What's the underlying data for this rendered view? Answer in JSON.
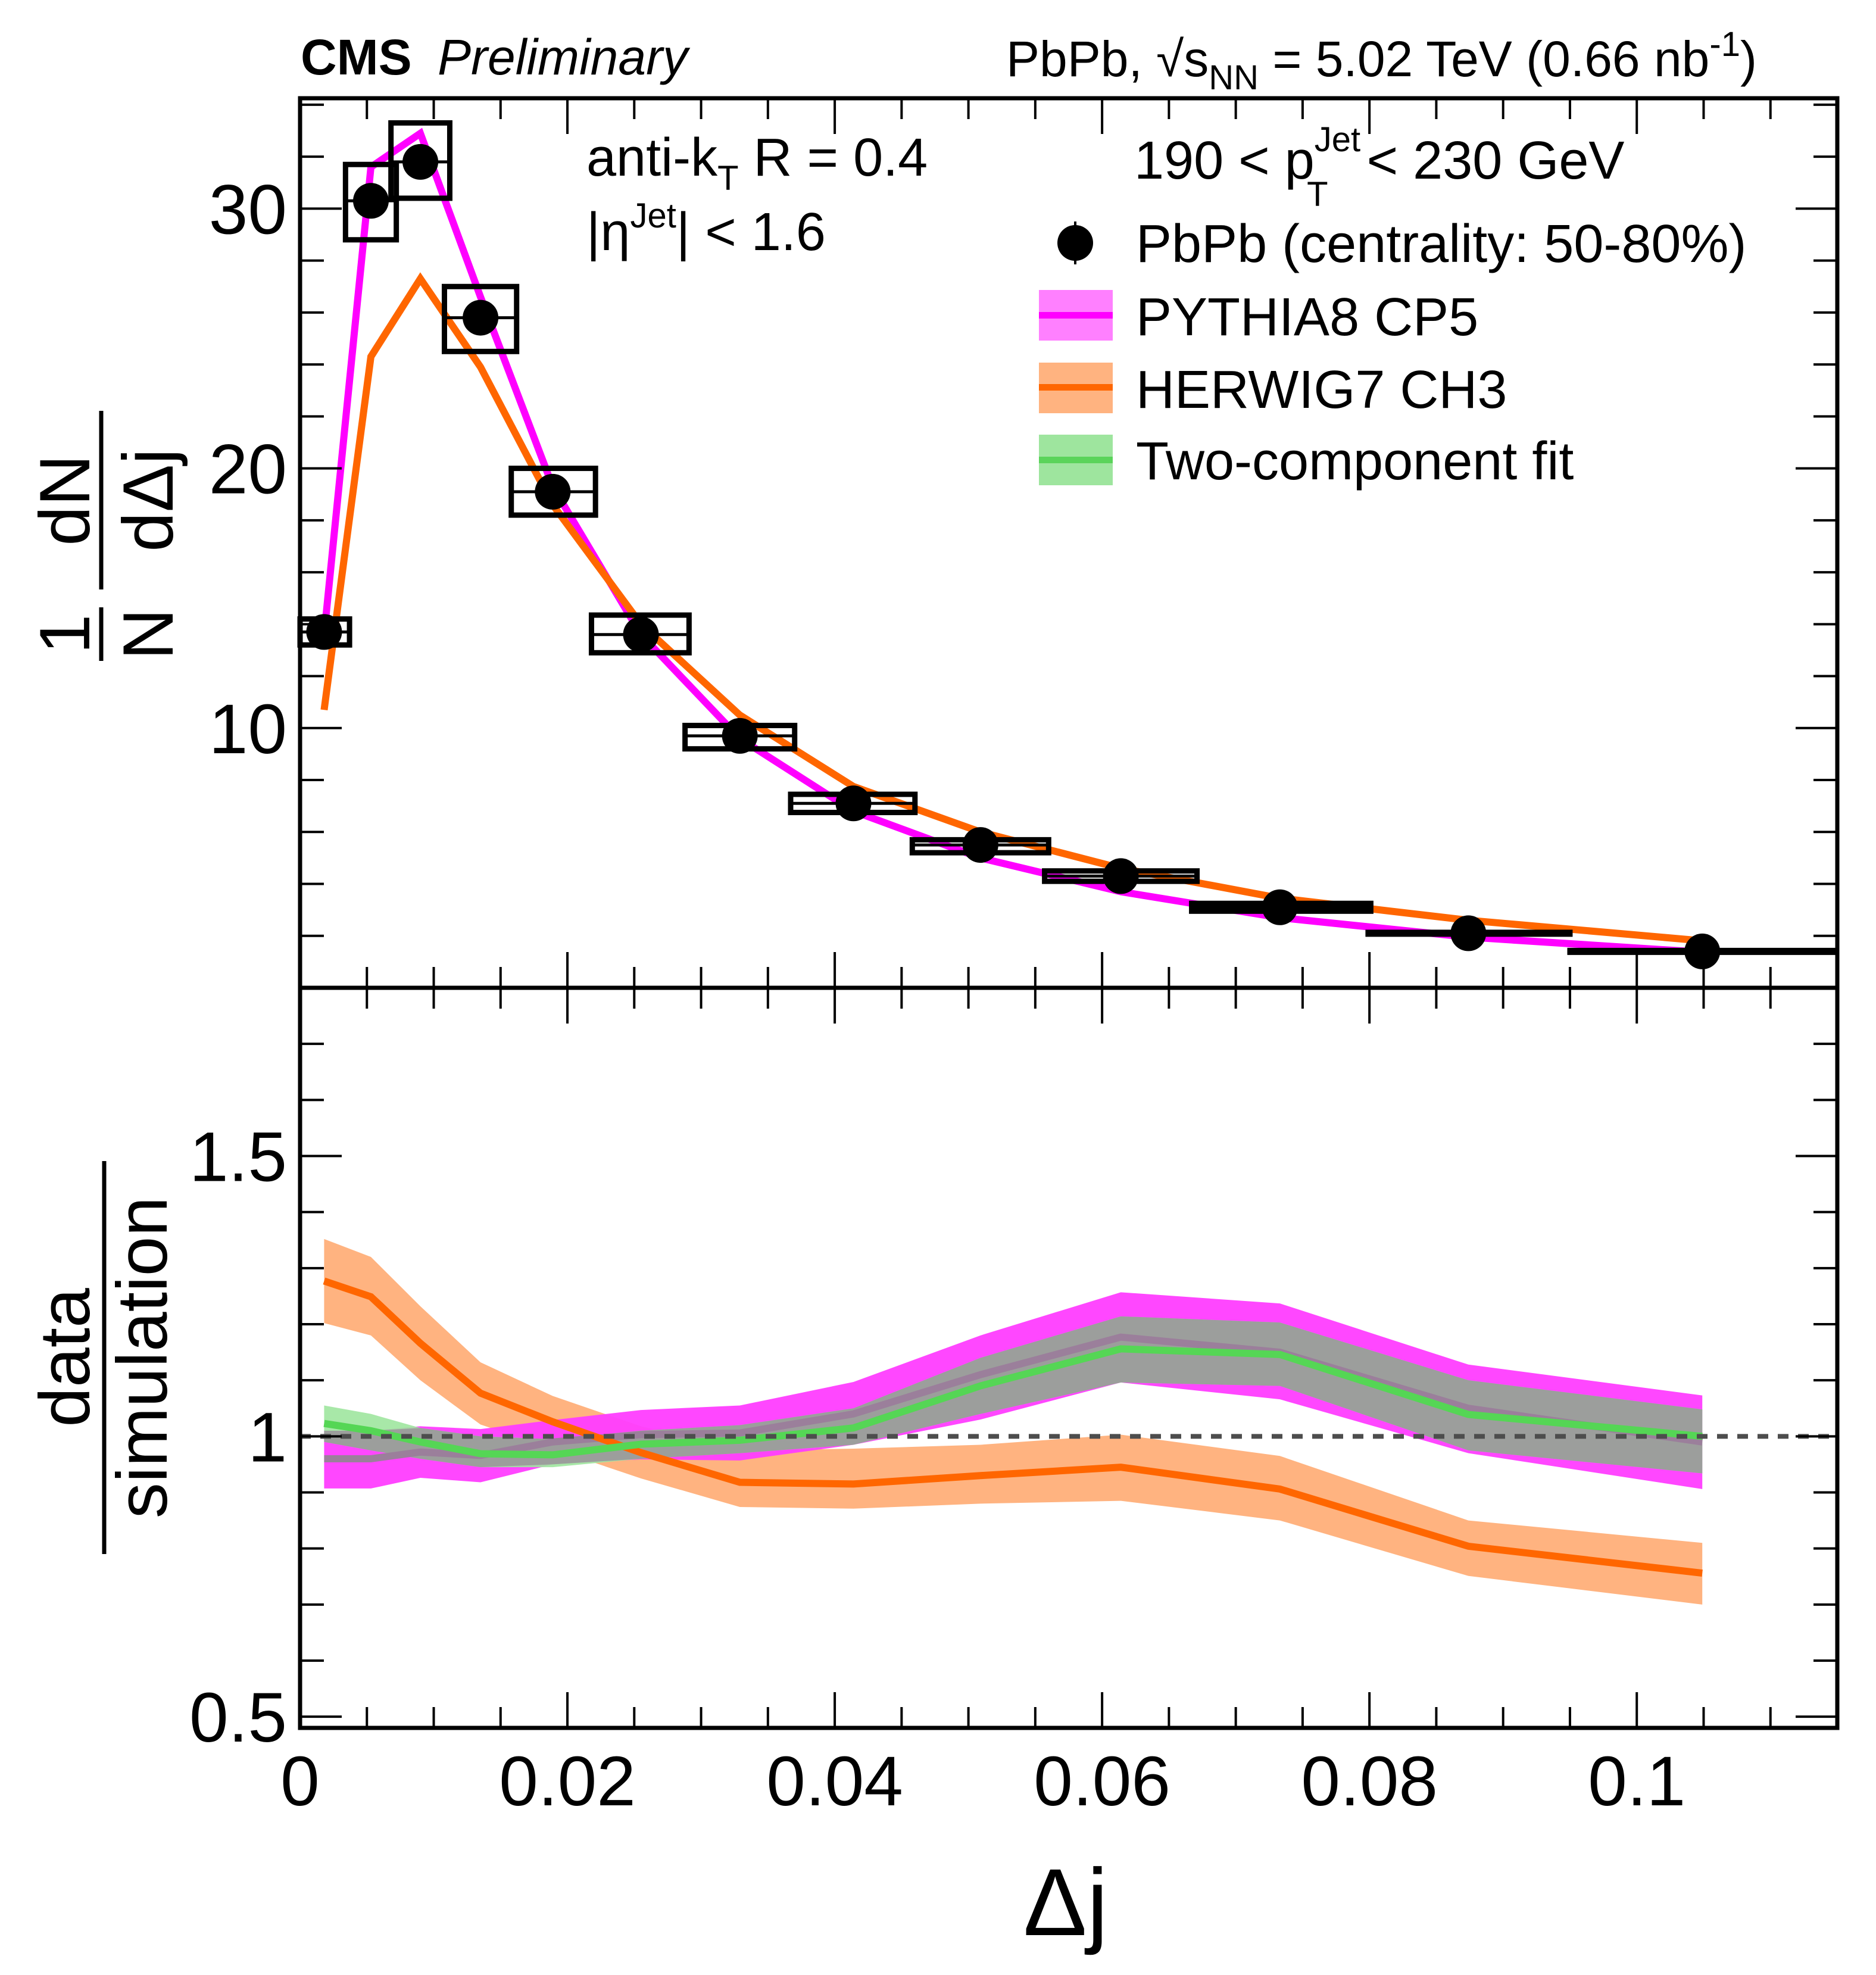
{
  "header": {
    "experiment": "CMS",
    "status": "Preliminary",
    "collision": "PbPb, √s",
    "collision_sub": "NN",
    "energy": " = 5.02 TeV (0.66 nb",
    "lumi_sup": "-1",
    "lumi_close": ")"
  },
  "annotations": {
    "algo_main": "anti-k",
    "algo_sub": "T",
    "algo_rest": " R = 0.4",
    "eta_pre": "|η",
    "eta_sup": "Jet",
    "eta_rest": "| < 1.6",
    "pt_pre": "190 < p",
    "pt_sup": "Jet",
    "pt_sub": "T",
    "pt_rest": " < 230 GeV"
  },
  "legend": [
    {
      "label": "PbPb (centrality: 50-80%)",
      "type": "marker"
    },
    {
      "label": "PYTHIA8 CP5",
      "type": "band",
      "line": "#ff00ff",
      "fill": "#ff80ff"
    },
    {
      "label": "HERWIG7 CH3",
      "type": "band",
      "line": "#ff6600",
      "fill": "#ffb380"
    },
    {
      "label": "Two-component fit",
      "type": "band",
      "line": "#5ad45a",
      "fill": "#9ee59e"
    }
  ],
  "colors": {
    "pythia": "#ff00ff",
    "pythia_band": "#ff3dff",
    "herwig": "#ff6600",
    "herwig_band": "#ffb380",
    "fit": "#55d655",
    "fit_band": "#9ee59e",
    "overlap_band": "#9b9b9b",
    "unity_line": "#4d4d4d"
  },
  "chart_data": [
    {
      "type": "scatter",
      "panel": "top",
      "xlabel": "Δj",
      "ylabel_num_1": "1",
      "ylabel_den_1": "N",
      "ylabel_num_2": "dN",
      "ylabel_den_2": "dΔj",
      "xlim": [
        0,
        0.115
      ],
      "ylim": [
        0,
        34.25
      ],
      "yticks": [
        10,
        20,
        30
      ],
      "ytick_labels": [
        "10",
        "20",
        "30"
      ],
      "y_minor_step": 2,
      "x_minor_step": 0.005,
      "data": {
        "name": "PbPb (centrality: 50-80%)",
        "x": [
          0.0018,
          0.0053,
          0.009,
          0.0135,
          0.0189,
          0.0255,
          0.0329,
          0.0414,
          0.0509,
          0.0614,
          0.0733,
          0.0874,
          0.1049
        ],
        "y": [
          13.7,
          30.3,
          31.8,
          25.8,
          19.1,
          13.6,
          9.7,
          7.1,
          5.5,
          4.3,
          3.1,
          2.1,
          1.4
        ],
        "x_lo": [
          0.0,
          0.0034,
          0.0068,
          0.0108,
          0.0158,
          0.0218,
          0.0288,
          0.0367,
          0.0458,
          0.0557,
          0.0667,
          0.0797,
          0.0948
        ],
        "x_hi": [
          0.0037,
          0.0072,
          0.0112,
          0.0162,
          0.0221,
          0.0291,
          0.037,
          0.046,
          0.056,
          0.0671,
          0.0801,
          0.0952,
          0.115
        ],
        "syst_lo": [
          13.2,
          28.8,
          30.4,
          24.5,
          18.2,
          12.9,
          9.2,
          6.75,
          5.2,
          4.1,
          2.95,
          2.0,
          1.3
        ],
        "syst_hi": [
          14.2,
          31.7,
          33.3,
          27.0,
          20.0,
          14.35,
          10.1,
          7.45,
          5.7,
          4.5,
          3.25,
          2.2,
          1.5
        ]
      },
      "series": [
        {
          "name": "PYTHIA8 CP5",
          "x": [
            0.0018,
            0.0053,
            0.009,
            0.0135,
            0.0189,
            0.0255,
            0.0329,
            0.0414,
            0.0509,
            0.0614,
            0.0733,
            0.0874,
            0.1049
          ],
          "y": [
            13.6,
            31.6,
            32.9,
            26.6,
            19.3,
            13.6,
            9.6,
            6.8,
            5.0,
            3.7,
            2.7,
            1.95,
            1.37
          ]
        },
        {
          "name": "HERWIG7 CH3",
          "x": [
            0.0018,
            0.0053,
            0.009,
            0.0135,
            0.0189,
            0.0255,
            0.0329,
            0.0414,
            0.0509,
            0.0614,
            0.0733,
            0.0874,
            0.1049
          ],
          "y": [
            10.7,
            24.3,
            27.3,
            23.9,
            18.6,
            14.0,
            10.5,
            7.75,
            6.0,
            4.6,
            3.45,
            2.6,
            1.81
          ]
        }
      ]
    },
    {
      "type": "area",
      "panel": "bottom",
      "xlabel": "Δj",
      "ylabel_num": "data",
      "ylabel_den": "simulation",
      "xlim": [
        0,
        0.115
      ],
      "ylim": [
        0.48,
        1.8
      ],
      "yticks": [
        0.5,
        1,
        1.5
      ],
      "ytick_labels": [
        "0.5",
        "1",
        "1.5"
      ],
      "y_minor_step": 0.1,
      "xticks": [
        0,
        0.02,
        0.04,
        0.06,
        0.08,
        0.1
      ],
      "xtick_labels": [
        "0",
        "0.02",
        "0.04",
        "0.06",
        "0.08",
        "0.1"
      ],
      "x_minor_step": 0.005,
      "reference_line": 1.0,
      "x": [
        0.0018,
        0.0053,
        0.009,
        0.0135,
        0.0189,
        0.0255,
        0.0329,
        0.0414,
        0.0509,
        0.0614,
        0.0733,
        0.0874,
        0.1049
      ],
      "series": [
        {
          "name": "HERWIG7 CH3",
          "y": [
            1.277,
            1.249,
            1.166,
            1.077,
            1.026,
            0.971,
            0.918,
            0.915,
            0.93,
            0.945,
            0.906,
            0.804,
            0.756
          ],
          "lo": [
            1.202,
            1.18,
            1.1,
            1.021,
            0.978,
            0.925,
            0.874,
            0.871,
            0.88,
            0.885,
            0.85,
            0.751,
            0.7
          ],
          "hi": [
            1.352,
            1.32,
            1.232,
            1.132,
            1.072,
            1.018,
            0.975,
            0.978,
            0.985,
            1.003,
            0.965,
            0.85,
            0.81
          ]
        },
        {
          "name": "PYTHIA8 CP5",
          "y": [
            0.96,
            0.96,
            0.972,
            0.966,
            0.99,
            1.003,
            1.006,
            1.04,
            1.11,
            1.177,
            1.15,
            1.05,
            0.99
          ],
          "lo": [
            0.907,
            0.907,
            0.926,
            0.918,
            0.95,
            0.959,
            0.957,
            0.985,
            1.03,
            1.096,
            1.066,
            0.97,
            0.906
          ],
          "hi": [
            1.01,
            1.01,
            1.018,
            1.013,
            1.029,
            1.047,
            1.055,
            1.097,
            1.18,
            1.257,
            1.237,
            1.128,
            1.073
          ]
        },
        {
          "name": "Two-component fit",
          "y": [
            1.023,
            1.01,
            0.99,
            0.969,
            0.967,
            0.986,
            0.993,
            1.015,
            1.09,
            1.156,
            1.146,
            1.039,
            1.0
          ],
          "lo": [
            0.99,
            0.975,
            0.96,
            0.945,
            0.945,
            0.96,
            0.97,
            0.985,
            1.04,
            1.096,
            1.09,
            0.975,
            0.934
          ],
          "hi": [
            1.055,
            1.04,
            1.015,
            1.0,
            0.995,
            1.01,
            1.02,
            1.05,
            1.14,
            1.214,
            1.203,
            1.1,
            1.048
          ]
        }
      ]
    }
  ]
}
